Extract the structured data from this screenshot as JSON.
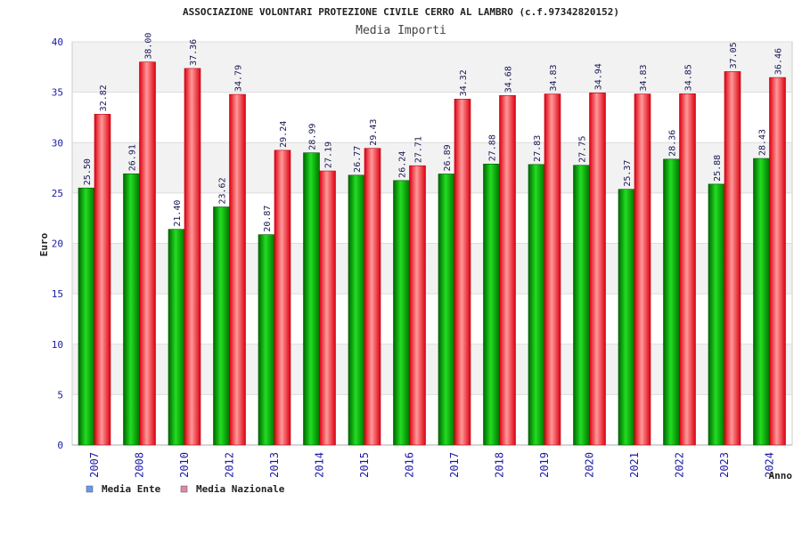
{
  "chart_data": {
    "type": "bar",
    "title": "ASSOCIAZIONE VOLONTARI PROTEZIONE CIVILE CERRO AL LAMBRO (c.f.97342820152)",
    "subtitle": "Media Importi",
    "xlabel": "Anno",
    "ylabel": "Euro",
    "ylim": [
      0,
      40
    ],
    "yticks": [
      "0",
      "5",
      "10",
      "15",
      "20",
      "25",
      "30",
      "35",
      "40"
    ],
    "grid": true,
    "legend_position": "bottom-left",
    "categories": [
      "2007",
      "2008",
      "2010",
      "2012",
      "2013",
      "2014",
      "2015",
      "2016",
      "2017",
      "2018",
      "2019",
      "2020",
      "2021",
      "2022",
      "2023",
      "2024"
    ],
    "series": [
      {
        "name": "Media Ente",
        "color": "#00aa00",
        "legend_color": "#6699ee",
        "values": [
          25.5,
          26.91,
          21.4,
          23.62,
          20.87,
          28.99,
          26.77,
          26.24,
          26.89,
          27.88,
          27.83,
          27.75,
          25.37,
          28.36,
          25.88,
          28.43
        ],
        "labels": [
          "25.50",
          "26.91",
          "21.40",
          "23.62",
          "20.87",
          "28.99",
          "26.77",
          "26.24",
          "26.89",
          "27.88",
          "27.83",
          "27.75",
          "25.37",
          "28.36",
          "25.88",
          "28.43"
        ]
      },
      {
        "name": "Media Nazionale",
        "color": "#ee1122",
        "legend_color": "#dd88aa",
        "values": [
          32.82,
          38.0,
          37.36,
          34.79,
          29.24,
          27.19,
          29.43,
          27.71,
          34.32,
          34.68,
          34.83,
          34.94,
          34.83,
          34.85,
          37.05,
          36.46
        ],
        "labels": [
          "32.82",
          "38.00",
          "37.36",
          "34.79",
          "29.24",
          "27.19",
          "29.43",
          "27.71",
          "34.32",
          "34.68",
          "34.83",
          "34.94",
          "34.83",
          "34.85",
          "37.05",
          "36.46"
        ]
      }
    ]
  }
}
